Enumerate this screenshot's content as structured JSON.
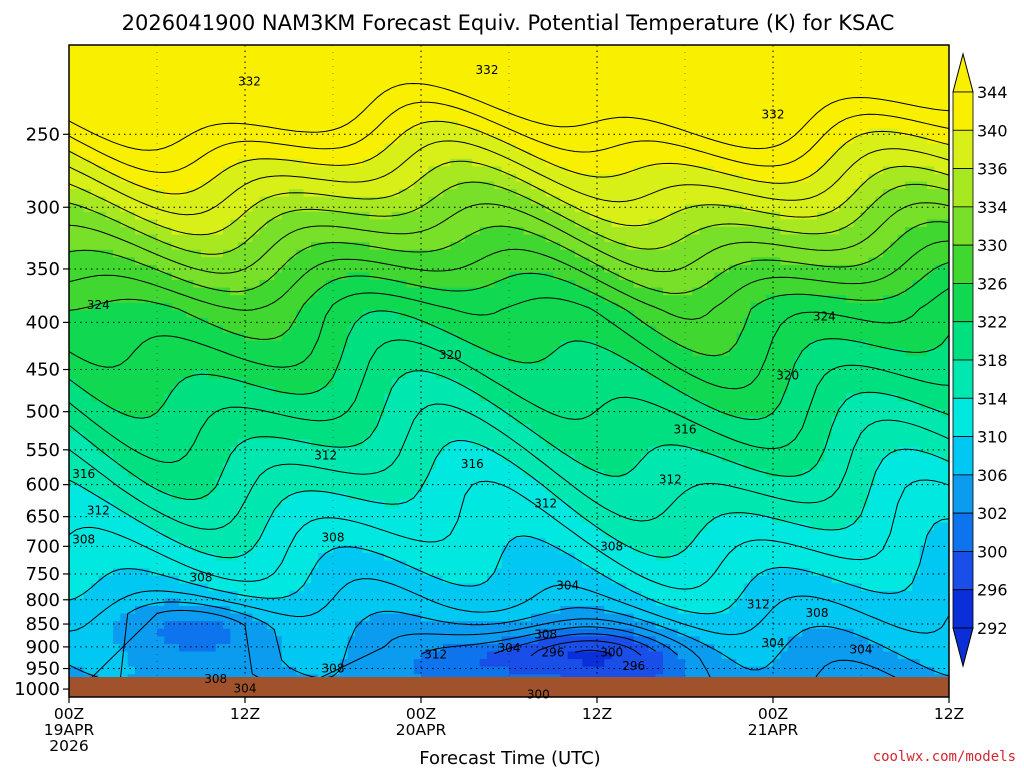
{
  "colors": {
    "ground": "#a0522d",
    "credit": "#d2262e",
    "levels": [
      {
        "min": 292,
        "color": "#0a2fd8"
      },
      {
        "min": 296,
        "color": "#1a4ee8"
      },
      {
        "min": 300,
        "color": "#0d74ee"
      },
      {
        "min": 302,
        "color": "#0b9cf0"
      },
      {
        "min": 306,
        "color": "#00c8f2"
      },
      {
        "min": 310,
        "color": "#00e8e0"
      },
      {
        "min": 314,
        "color": "#00e8b0"
      },
      {
        "min": 318,
        "color": "#00e080"
      },
      {
        "min": 322,
        "color": "#10d850"
      },
      {
        "min": 326,
        "color": "#40d830"
      },
      {
        "min": 330,
        "color": "#78e028"
      },
      {
        "min": 334,
        "color": "#a8e820"
      },
      {
        "min": 336,
        "color": "#d8f018"
      },
      {
        "min": 340,
        "color": "#f8f000"
      }
    ]
  },
  "chart_data": {
    "type": "heatmap",
    "title": "2026041900 NAM3KM Forecast Equiv. Potential Temperature (K) for KSAC",
    "xlabel": "Forecast Time (UTC)",
    "ylabel": "",
    "x_range_hours": [
      0,
      60
    ],
    "y_range_hpa": [
      1000,
      200
    ],
    "y_scale": "log-pressure",
    "grid": true,
    "x_ticks": [
      {
        "hour": 0,
        "lines": [
          "00Z",
          "19APR",
          "2026"
        ]
      },
      {
        "hour": 12,
        "lines": [
          "12Z"
        ]
      },
      {
        "hour": 24,
        "lines": [
          "00Z",
          "20APR"
        ]
      },
      {
        "hour": 36,
        "lines": [
          "12Z"
        ]
      },
      {
        "hour": 48,
        "lines": [
          "00Z",
          "21APR"
        ]
      },
      {
        "hour": 60,
        "lines": [
          "12Z"
        ]
      }
    ],
    "y_ticks": [
      "250",
      "300",
      "350",
      "400",
      "450",
      "500",
      "550",
      "600",
      "650",
      "700",
      "750",
      "800",
      "850",
      "900",
      "950",
      "1000"
    ],
    "colorbar": {
      "labels": [
        "344",
        "340",
        "336",
        "334",
        "330",
        "326",
        "322",
        "318",
        "314",
        "310",
        "306",
        "302",
        "300",
        "296",
        "292"
      ],
      "extend": "both"
    },
    "contour_labels": [
      {
        "text": "332",
        "hour": 12.3,
        "hpa": 219
      },
      {
        "text": "332",
        "hour": 28.5,
        "hpa": 213
      },
      {
        "text": "332",
        "hour": 48.0,
        "hpa": 238
      },
      {
        "text": "324",
        "hour": 2.0,
        "hpa": 383
      },
      {
        "text": "324",
        "hour": 51.5,
        "hpa": 394
      },
      {
        "text": "320",
        "hour": 26.0,
        "hpa": 434
      },
      {
        "text": "320",
        "hour": 49.0,
        "hpa": 457
      },
      {
        "text": "316",
        "hour": 1.0,
        "hpa": 584
      },
      {
        "text": "316",
        "hour": 27.5,
        "hpa": 570
      },
      {
        "text": "316",
        "hour": 42.0,
        "hpa": 523
      },
      {
        "text": "312",
        "hour": 17.5,
        "hpa": 558
      },
      {
        "text": "312",
        "hour": 2.0,
        "hpa": 640
      },
      {
        "text": "312",
        "hour": 32.5,
        "hpa": 629
      },
      {
        "text": "312",
        "hour": 41.0,
        "hpa": 592
      },
      {
        "text": "312",
        "hour": 47.0,
        "hpa": 810
      },
      {
        "text": "312",
        "hour": 25.0,
        "hpa": 917
      },
      {
        "text": "308",
        "hour": 1.0,
        "hpa": 688
      },
      {
        "text": "308",
        "hour": 18.0,
        "hpa": 685
      },
      {
        "text": "308",
        "hour": 37.0,
        "hpa": 700
      },
      {
        "text": "308",
        "hour": 9.0,
        "hpa": 757
      },
      {
        "text": "308",
        "hour": 10.0,
        "hpa": 975
      },
      {
        "text": "308",
        "hour": 18.0,
        "hpa": 950
      },
      {
        "text": "308",
        "hour": 32.5,
        "hpa": 873
      },
      {
        "text": "308",
        "hour": 51.0,
        "hpa": 827
      },
      {
        "text": "304",
        "hour": 34.0,
        "hpa": 772
      },
      {
        "text": "304",
        "hour": 30.0,
        "hpa": 902
      },
      {
        "text": "304",
        "hour": 48.0,
        "hpa": 891
      },
      {
        "text": "304",
        "hour": 54.0,
        "hpa": 906
      },
      {
        "text": "304",
        "hour": 12.0,
        "hpa": 998
      },
      {
        "text": "300",
        "hour": 37.0,
        "hpa": 913
      },
      {
        "text": "300",
        "hour": 32.0,
        "hpa": 1014
      },
      {
        "text": "296",
        "hour": 33.0,
        "hpa": 913
      },
      {
        "text": "296",
        "hour": 38.5,
        "hpa": 944
      }
    ]
  },
  "credit": "coolwx.com/models"
}
